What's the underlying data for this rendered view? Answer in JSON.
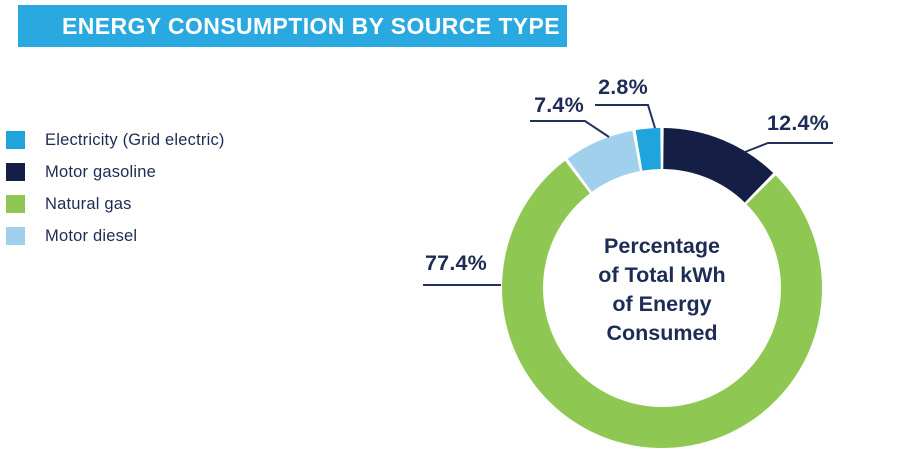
{
  "title": "ENERGY CONSUMPTION BY SOURCE TYPE",
  "colors": {
    "banner": "#29A9E0",
    "text_navy": "#1D2C55",
    "leader_line": "#22315B"
  },
  "legend": {
    "items": [
      {
        "label": "Electricity (Grid electric)",
        "color": "#1FA4DC"
      },
      {
        "label": "Motor gasoline",
        "color": "#151F45"
      },
      {
        "label": "Natural gas",
        "color": "#8EC751"
      },
      {
        "label": "Motor diesel",
        "color": "#A0D0EB"
      }
    ]
  },
  "chart_data": {
    "type": "pie",
    "subtype": "donut",
    "title": "Percentage of Total kWh of Energy Consumed",
    "unit": "%",
    "start_angle_deg": 0,
    "direction": "clockwise",
    "segments": [
      {
        "label": "Motor gasoline",
        "value": 12.4,
        "display": "12.4%",
        "color": "#151F45"
      },
      {
        "label": "Natural gas",
        "value": 77.4,
        "display": "77.4%",
        "color": "#8EC751"
      },
      {
        "label": "Motor diesel",
        "value": 7.4,
        "display": "7.4%",
        "color": "#A0D0EB"
      },
      {
        "label": "Electricity (Grid electric)",
        "value": 2.8,
        "display": "2.8%",
        "color": "#1FA4DC"
      }
    ],
    "center_label_lines": [
      "Percentage",
      "of Total kWh",
      "of Energy",
      "Consumed"
    ]
  }
}
